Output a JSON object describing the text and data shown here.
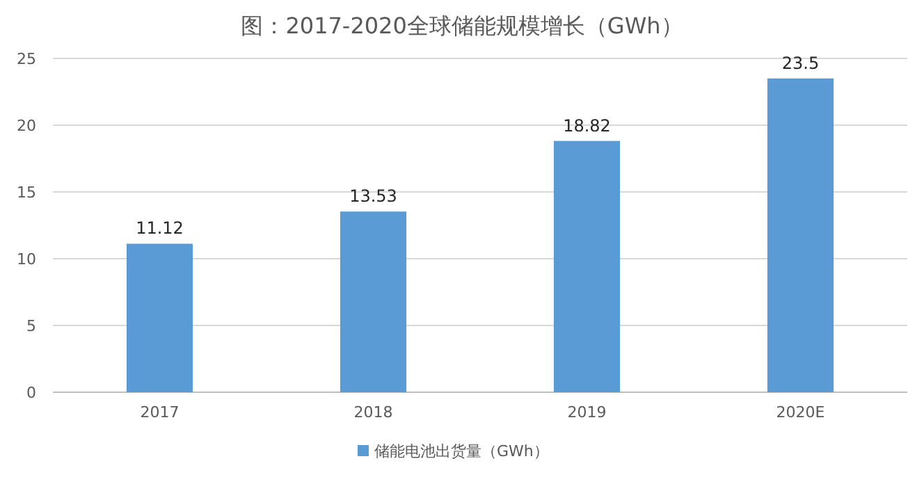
{
  "chart_data": {
    "type": "bar",
    "title": "图：2017-2020全球储能规模增长（GWh）",
    "categories": [
      "2017",
      "2018",
      "2019",
      "2020E"
    ],
    "series": [
      {
        "name": "储能电池出货量（GWh）",
        "color": "#5b9bd5",
        "values": [
          11.12,
          13.53,
          18.82,
          23.5
        ]
      }
    ],
    "ylim": [
      0,
      25
    ],
    "yticks": [
      0,
      5,
      10,
      15,
      20,
      25
    ],
    "grid": "y",
    "legend": "bottom",
    "data_labels": true
  }
}
